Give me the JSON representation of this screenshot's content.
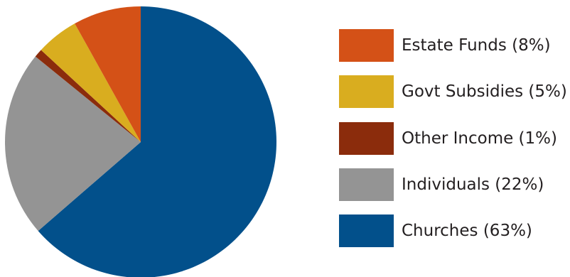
{
  "chart_data": {
    "type": "pie",
    "title": "",
    "start": "12 o'clock, clockwise",
    "slices": [
      {
        "label": "Churches (63%)",
        "value": 63,
        "color": "#02508b"
      },
      {
        "label": "Individuals (22%)",
        "value": 22,
        "color": "#949494"
      },
      {
        "label": "Other Income (1%)",
        "value": 1,
        "color": "#8b2c0c"
      },
      {
        "label": "Govt Subsidies (5%)",
        "value": 5,
        "color": "#d9ad1f"
      },
      {
        "label": "Estate Funds (8%)",
        "value": 8,
        "color": "#d45117"
      }
    ],
    "legend": {
      "placement": "right",
      "items": [
        {
          "label": "Estate Funds (8%)",
          "color": "#d45117"
        },
        {
          "label": "Govt Subsidies (5%)",
          "color": "#d9ad1f"
        },
        {
          "label": "Other Income (1%)",
          "color": "#8b2c0c"
        },
        {
          "label": "Individuals (22%)",
          "color": "#949494"
        },
        {
          "label": "Churches (63%)",
          "color": "#02508b"
        }
      ]
    }
  }
}
